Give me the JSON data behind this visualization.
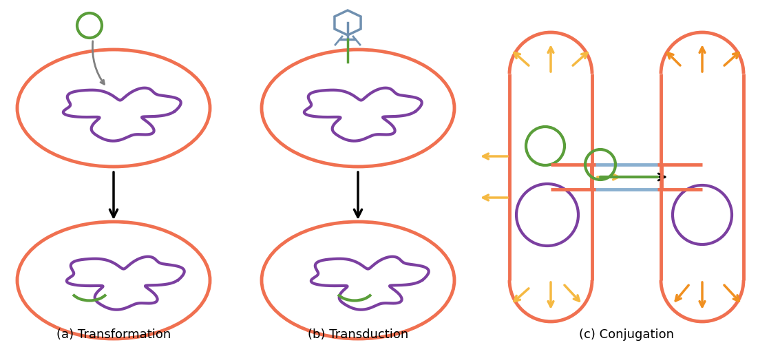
{
  "bg_color": "#ffffff",
  "cell_color": "#f07050",
  "cell_lw": 3.5,
  "dna_color": "#7b3fa0",
  "dna_lw": 3.0,
  "green_color": "#5a9e3a",
  "green_lw": 3.0,
  "phage_color": "#7090b0",
  "arrow_color": "#000000",
  "yellow_color": "#f5b942",
  "orange_color": "#f09020",
  "purple_color": "#7b3fa0",
  "blue_color": "#8ab0d0",
  "label_a": "(a) Transformation",
  "label_b": "(b) Transduction",
  "label_c": "(c) Conjugation",
  "label_fontsize": 13
}
